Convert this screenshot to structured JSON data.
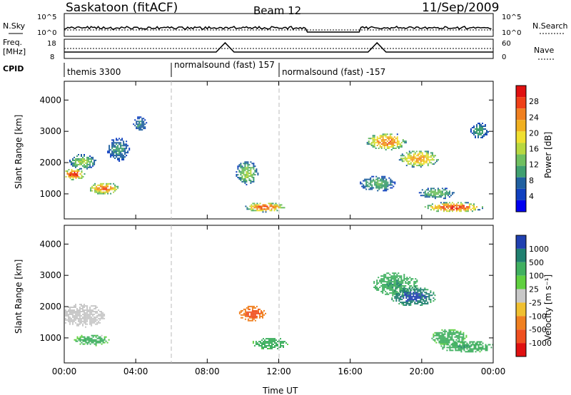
{
  "header": {
    "station": "Saskatoon (fitACF)",
    "beam": "Beam 12",
    "date": "11/Sep/2009"
  },
  "panels": {
    "nsky": {
      "label": "N.Sky",
      "left_ticks": [
        "10^5",
        "10^0"
      ],
      "right_ticks": [
        "10^5",
        "10^0"
      ],
      "right_label": "N.Search"
    },
    "freq": {
      "label_line1": "Freq.",
      "label_line2": "[MHz]",
      "left_ticks": [
        "18",
        "8"
      ],
      "right_ticks": [
        "60",
        "0"
      ],
      "right_label": "Nave"
    },
    "cpid": {
      "label": "CPID",
      "programs": [
        "themis 3300",
        "normalsound (fast) 157",
        "normalsound (fast) -157"
      ],
      "program_start_hours": [
        0,
        6,
        12
      ]
    }
  },
  "axes": {
    "ylabel": "Slant Range [km]",
    "xlabel": "Time UT",
    "xticks": [
      "00:00",
      "04:00",
      "08:00",
      "12:00",
      "16:00",
      "20:00",
      "00:00"
    ],
    "yticks": [
      "1000",
      "2000",
      "3000",
      "4000"
    ]
  },
  "colorbars": {
    "power": {
      "label": "Power [dB]",
      "ticks": [
        "28",
        "24",
        "20",
        "16",
        "12",
        "8",
        "4"
      ],
      "colors": [
        "#e01010",
        "#f04018",
        "#f08020",
        "#f0b020",
        "#f0e030",
        "#b8d840",
        "#70c060",
        "#40a070",
        "#2060a0",
        "#1040c0",
        "#0000f0"
      ]
    },
    "velocity": {
      "label": "Velocity [m s⁻¹]",
      "ticks": [
        "1000",
        "500",
        "100",
        "25",
        "-25",
        "-100",
        "-500",
        "-1000"
      ],
      "colors": [
        "#2040b0",
        "#208070",
        "#40b060",
        "#60d040",
        "#c8c8c8",
        "#f0c030",
        "#f08020",
        "#f05020",
        "#e01010"
      ]
    }
  },
  "chart_data": {
    "type": "heatmap",
    "title": "Saskatoon (fitACF) Beam 12 11/Sep/2009",
    "xlabel": "Time UT",
    "ylabel": "Slant Range [km]",
    "xlim_hours": [
      0,
      24
    ],
    "ylim_km": [
      200,
      4600
    ],
    "power_range_db": [
      0,
      30
    ],
    "velocity_range_ms": [
      -1000,
      1000
    ],
    "no_data_gap_hours": [
      13.5,
      16.5
    ],
    "program_change_hours": [
      6,
      12
    ],
    "power_blobs": [
      {
        "t": 0.5,
        "r": 1600,
        "dt": 0.5,
        "dr": 150,
        "db": 28
      },
      {
        "t": 1.0,
        "r": 2000,
        "dt": 0.6,
        "dr": 200,
        "db": 14
      },
      {
        "t": 2.2,
        "r": 1150,
        "dt": 0.7,
        "dr": 150,
        "db": 25
      },
      {
        "t": 3.0,
        "r": 2400,
        "dt": 0.5,
        "dr": 300,
        "db": 9
      },
      {
        "t": 4.2,
        "r": 3200,
        "dt": 0.3,
        "dr": 200,
        "db": 8
      },
      {
        "t": 10.2,
        "r": 1650,
        "dt": 0.5,
        "dr": 300,
        "db": 14
      },
      {
        "t": 11.2,
        "r": 550,
        "dt": 0.9,
        "dr": 120,
        "db": 27
      },
      {
        "t": 18.0,
        "r": 2650,
        "dt": 0.9,
        "dr": 220,
        "db": 25
      },
      {
        "t": 19.8,
        "r": 2100,
        "dt": 0.9,
        "dr": 220,
        "db": 22
      },
      {
        "t": 17.5,
        "r": 1300,
        "dt": 0.8,
        "dr": 200,
        "db": 11
      },
      {
        "t": 21.8,
        "r": 550,
        "dt": 1.3,
        "dr": 130,
        "db": 28
      },
      {
        "t": 20.8,
        "r": 1000,
        "dt": 0.8,
        "dr": 150,
        "db": 12
      },
      {
        "t": 23.2,
        "r": 3000,
        "dt": 0.4,
        "dr": 200,
        "db": 10
      }
    ],
    "velocity_blobs": [
      {
        "t": 1.0,
        "r": 1700,
        "dt": 1.0,
        "dr": 300,
        "v": 10
      },
      {
        "t": 1.5,
        "r": 900,
        "dt": 0.8,
        "dr": 150,
        "v": 120
      },
      {
        "t": 10.5,
        "r": 1750,
        "dt": 0.6,
        "dr": 200,
        "v": -400
      },
      {
        "t": 11.5,
        "r": 800,
        "dt": 0.8,
        "dr": 150,
        "v": 150
      },
      {
        "t": 18.5,
        "r": 2700,
        "dt": 1.0,
        "dr": 300,
        "v": 300
      },
      {
        "t": 19.5,
        "r": 2300,
        "dt": 1.0,
        "dr": 250,
        "v": 800
      },
      {
        "t": 21.5,
        "r": 1000,
        "dt": 0.8,
        "dr": 200,
        "v": 150
      },
      {
        "t": 22.5,
        "r": 700,
        "dt": 1.2,
        "dr": 150,
        "v": 300
      }
    ]
  }
}
